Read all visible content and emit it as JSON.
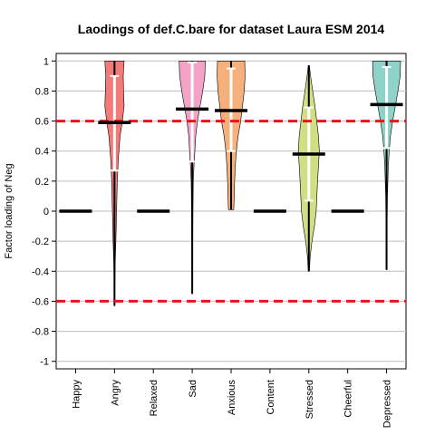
{
  "chart_data": {
    "type": "violin",
    "title": "Laodings of def.C.bare for dataset Laura ESM 2014",
    "xlabel": "",
    "ylabel": "Factor loading of Neg",
    "ylim": [
      -1.05,
      1.05
    ],
    "yticks": [
      -1,
      -0.8,
      -0.6,
      -0.4,
      -0.2,
      0,
      0.2,
      0.4,
      0.6,
      0.8,
      1
    ],
    "ytick_labels": [
      "-1",
      "-0.8",
      "-0.6",
      "-0.4",
      "-0.2",
      "0",
      "0.2",
      "0.4",
      "0.6",
      "0.8",
      "1"
    ],
    "reference_lines": [
      0.6,
      -0.6
    ],
    "reference_line_color": "#e8141b",
    "grid": true,
    "categories": [
      "Happy",
      "Angry",
      "Relaxed",
      "Sad",
      "Anxious",
      "Content",
      "Stressed",
      "Cheerful",
      "Depressed"
    ],
    "series": [
      {
        "category": "Happy",
        "median": 0,
        "constant": true
      },
      {
        "category": "Angry",
        "color": "#f47a7a",
        "median": 0.59,
        "min": -0.63,
        "max": 1.0,
        "q_low": 0.27,
        "q_high": 0.9,
        "density": [
          [
            -0.63,
            0.01
          ],
          [
            -0.5,
            0.02
          ],
          [
            -0.35,
            0.04
          ],
          [
            -0.2,
            0.08
          ],
          [
            0.0,
            0.12
          ],
          [
            0.2,
            0.16
          ],
          [
            0.35,
            0.22
          ],
          [
            0.5,
            0.32
          ],
          [
            0.6,
            0.45
          ],
          [
            0.7,
            0.55
          ],
          [
            0.8,
            0.52
          ],
          [
            0.9,
            0.5
          ],
          [
            1.0,
            0.55
          ]
        ]
      },
      {
        "category": "Relaxed",
        "median": 0,
        "constant": true
      },
      {
        "category": "Sad",
        "color": "#f4a2c8",
        "median": 0.68,
        "min": -0.55,
        "max": 1.0,
        "q_low": 0.33,
        "q_high": 0.99,
        "density": [
          [
            -0.55,
            0.02
          ],
          [
            -0.2,
            0.03
          ],
          [
            0.0,
            0.04
          ],
          [
            0.2,
            0.06
          ],
          [
            0.3,
            0.1
          ],
          [
            0.4,
            0.15
          ],
          [
            0.5,
            0.2
          ],
          [
            0.6,
            0.3
          ],
          [
            0.7,
            0.45
          ],
          [
            0.8,
            0.6
          ],
          [
            0.9,
            0.72
          ],
          [
            1.0,
            0.75
          ]
        ]
      },
      {
        "category": "Anxious",
        "color": "#f6b07c",
        "median": 0.67,
        "min": 0.01,
        "max": 1.0,
        "q_low": 0.4,
        "q_high": 0.95,
        "density": [
          [
            0.01,
            0.15
          ],
          [
            0.1,
            0.18
          ],
          [
            0.2,
            0.2
          ],
          [
            0.3,
            0.24
          ],
          [
            0.4,
            0.3
          ],
          [
            0.5,
            0.4
          ],
          [
            0.6,
            0.55
          ],
          [
            0.7,
            0.65
          ],
          [
            0.8,
            0.75
          ],
          [
            0.9,
            0.8
          ],
          [
            1.0,
            0.78
          ]
        ]
      },
      {
        "category": "Content",
        "median": 0,
        "constant": true
      },
      {
        "category": "Stressed",
        "color": "#cfdf83",
        "median": 0.38,
        "min": -0.4,
        "max": 0.97,
        "q_low": 0.07,
        "q_high": 0.69,
        "density": [
          [
            -0.4,
            0.03
          ],
          [
            -0.3,
            0.08
          ],
          [
            -0.2,
            0.18
          ],
          [
            -0.1,
            0.32
          ],
          [
            0.0,
            0.42
          ],
          [
            0.1,
            0.46
          ],
          [
            0.2,
            0.5
          ],
          [
            0.3,
            0.55
          ],
          [
            0.4,
            0.6
          ],
          [
            0.5,
            0.55
          ],
          [
            0.6,
            0.45
          ],
          [
            0.7,
            0.35
          ],
          [
            0.8,
            0.22
          ],
          [
            0.9,
            0.1
          ],
          [
            0.97,
            0.03
          ]
        ]
      },
      {
        "category": "Cheerful",
        "median": 0,
        "constant": true
      },
      {
        "category": "Depressed",
        "color": "#8fd3c8",
        "median": 0.71,
        "min": -0.39,
        "max": 1.0,
        "q_low": 0.42,
        "q_high": 0.96,
        "density": [
          [
            -0.39,
            0.02
          ],
          [
            -0.1,
            0.03
          ],
          [
            0.1,
            0.05
          ],
          [
            0.3,
            0.1
          ],
          [
            0.4,
            0.15
          ],
          [
            0.5,
            0.22
          ],
          [
            0.6,
            0.35
          ],
          [
            0.7,
            0.5
          ],
          [
            0.8,
            0.65
          ],
          [
            0.9,
            0.78
          ],
          [
            1.0,
            0.8
          ]
        ]
      }
    ]
  }
}
